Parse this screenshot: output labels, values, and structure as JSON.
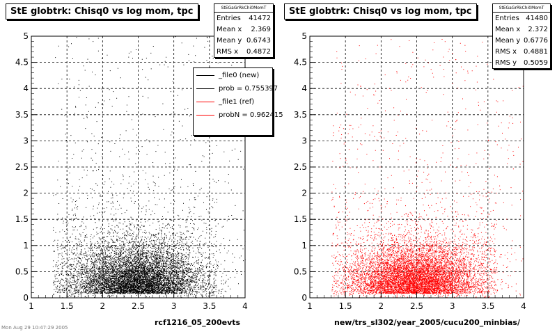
{
  "footer_text": "Mon Aug 29 10:47:29 2005",
  "chart_data": [
    {
      "type": "scatter",
      "title": "StE globtrk: Chisq0 vs log mom, tpc",
      "xlabel": "rcf1216_05_200evts",
      "ylabel": "",
      "xlim": [
        1,
        4
      ],
      "ylim": [
        0,
        5
      ],
      "x_ticks": [
        "1",
        "1.5",
        "2",
        "2.5",
        "3",
        "3.5",
        "4"
      ],
      "y_ticks": [
        "0",
        "0.5",
        "1",
        "1.5",
        "2",
        "2.5",
        "3",
        "3.5",
        "4",
        "4.5",
        "5"
      ],
      "grid": true,
      "color": "#000000",
      "stats": {
        "name": "StEGaGrRkChi0MomT",
        "entries_label": "Entries",
        "entries": "41472",
        "meanx_label": "Mean x",
        "meanx": "2.369",
        "meany_label": "Mean y",
        "meany": "0.6743",
        "rmsx_label": "RMS x",
        "rmsx": "0.4872"
      },
      "legend": {
        "placement": "top-right",
        "entries": [
          {
            "label": "_file0 (new)",
            "color": "#000000"
          },
          {
            "label": "prob = 0.755397",
            "color": "#000000"
          },
          {
            "label": "_file1 (ref)",
            "color": "#ff0000"
          },
          {
            "label": "probN = 0.962415",
            "color": "#ff0000"
          }
        ]
      }
    },
    {
      "type": "scatter",
      "title": "StE globtrk: Chisq0 vs log mom, tpc",
      "xlabel": "new/trs_sl302/year_2005/cucu200_minbias/",
      "ylabel": "",
      "xlim": [
        1,
        4
      ],
      "ylim": [
        0,
        5
      ],
      "x_ticks": [
        "1",
        "1.5",
        "2",
        "2.5",
        "3",
        "3.5",
        "4"
      ],
      "y_ticks": [
        "0",
        "0.5",
        "1",
        "1.5",
        "2",
        "2.5",
        "3",
        "3.5",
        "4",
        "4.5",
        "5"
      ],
      "grid": true,
      "color": "#ff0000",
      "stats": {
        "name": "StEGaGrRkChi0MomT",
        "entries_label": "Entries",
        "entries": "41480",
        "meanx_label": "Mean x",
        "meanx": "2.372",
        "meany_label": "Mean y",
        "meany": "0.6776",
        "rmsx_label": "RMS x",
        "rmsx": "0.4881",
        "rmsy_label": "RMS y",
        "rmsy": "0.5059"
      }
    }
  ]
}
